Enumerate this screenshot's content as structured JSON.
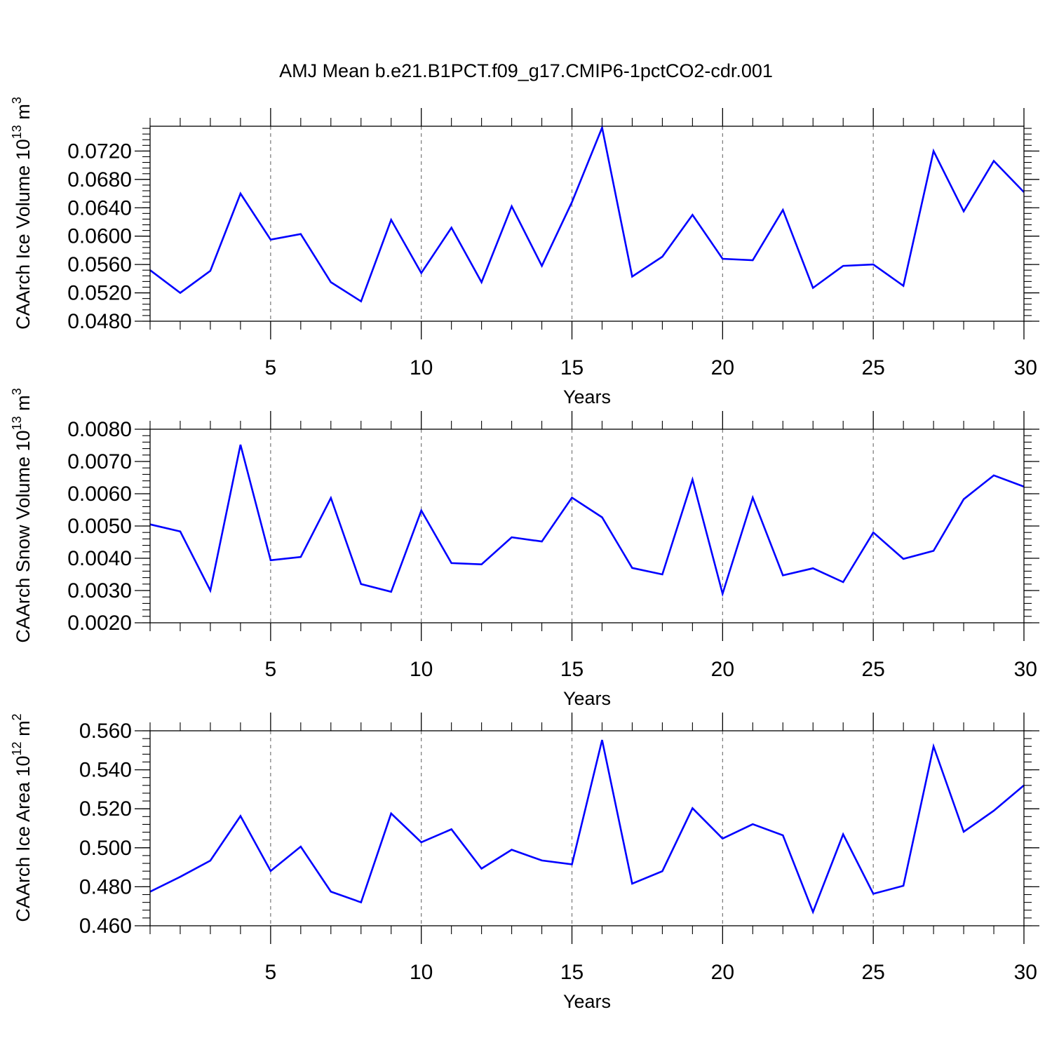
{
  "title": "AMJ Mean b.e21.B1PCT.f09_g17.CMIP6-1pctCO2-cdr.001",
  "line_color": "#0000ff",
  "chart_data": [
    {
      "type": "line",
      "xlabel": "Years",
      "ylabel": "CAArch Ice Volume 10",
      "ylabel_exp": "13",
      "ylabel_unit": " m",
      "ylabel_unit_exp": "3",
      "xlim": [
        1,
        30
      ],
      "ylim": [
        0.048,
        0.0755
      ],
      "x_ticks": [
        5,
        10,
        15,
        20,
        25,
        30
      ],
      "y_ticks": [
        0.048,
        0.052,
        0.056,
        0.06,
        0.064,
        0.068,
        0.072
      ],
      "y_tick_labels": [
        "0.0480",
        "0.0520",
        "0.0560",
        "0.0600",
        "0.0640",
        "0.0680",
        "0.0720"
      ],
      "x": [
        1,
        2,
        3,
        4,
        5,
        6,
        7,
        8,
        9,
        10,
        11,
        12,
        13,
        14,
        15,
        16,
        17,
        18,
        19,
        20,
        21,
        22,
        23,
        24,
        25,
        26,
        27,
        28,
        29,
        30
      ],
      "values": [
        0.0552,
        0.052,
        0.0551,
        0.066,
        0.0595,
        0.0603,
        0.0535,
        0.0508,
        0.0623,
        0.0548,
        0.0612,
        0.0535,
        0.0642,
        0.0558,
        0.0648,
        0.0753,
        0.0543,
        0.0571,
        0.063,
        0.0568,
        0.0566,
        0.0637,
        0.0527,
        0.0558,
        0.056,
        0.053,
        0.072,
        0.0635,
        0.0706,
        0.0662
      ]
    },
    {
      "type": "line",
      "xlabel": "Years",
      "ylabel": "CAArch Snow Volume 10",
      "ylabel_exp": "13",
      "ylabel_unit": " m",
      "ylabel_unit_exp": "3",
      "xlim": [
        1,
        30
      ],
      "ylim": [
        0.002,
        0.008
      ],
      "x_ticks": [
        5,
        10,
        15,
        20,
        25,
        30
      ],
      "y_ticks": [
        0.002,
        0.003,
        0.004,
        0.005,
        0.006,
        0.007,
        0.008
      ],
      "y_tick_labels": [
        "0.0020",
        "0.0030",
        "0.0040",
        "0.0050",
        "0.0060",
        "0.0070",
        "0.0080"
      ],
      "x": [
        1,
        2,
        3,
        4,
        5,
        6,
        7,
        8,
        9,
        10,
        11,
        12,
        13,
        14,
        15,
        16,
        17,
        18,
        19,
        20,
        21,
        22,
        23,
        24,
        25,
        26,
        27,
        28,
        29,
        30
      ],
      "values": [
        0.00505,
        0.00483,
        0.003,
        0.00752,
        0.00394,
        0.00404,
        0.00587,
        0.0032,
        0.00296,
        0.00548,
        0.00385,
        0.00381,
        0.00465,
        0.00452,
        0.00588,
        0.00527,
        0.0037,
        0.0035,
        0.00644,
        0.0029,
        0.00588,
        0.00347,
        0.00369,
        0.00326,
        0.0048,
        0.00398,
        0.00423,
        0.00583,
        0.00657,
        0.00622
      ]
    },
    {
      "type": "line",
      "xlabel": "Years",
      "ylabel": "CAArch Ice Area 10",
      "ylabel_exp": "12",
      "ylabel_unit": " m",
      "ylabel_unit_exp": "2",
      "xlim": [
        1,
        30
      ],
      "ylim": [
        0.46,
        0.56
      ],
      "x_ticks": [
        5,
        10,
        15,
        20,
        25,
        30
      ],
      "y_ticks": [
        0.46,
        0.48,
        0.5,
        0.52,
        0.54,
        0.56
      ],
      "y_tick_labels": [
        "0.460",
        "0.480",
        "0.500",
        "0.520",
        "0.540",
        "0.560"
      ],
      "x": [
        1,
        2,
        3,
        4,
        5,
        6,
        7,
        8,
        9,
        10,
        11,
        12,
        13,
        14,
        15,
        16,
        17,
        18,
        19,
        20,
        21,
        22,
        23,
        24,
        25,
        26,
        27,
        28,
        29,
        30
      ],
      "values": [
        0.4775,
        0.4851,
        0.4934,
        0.5163,
        0.4881,
        0.5006,
        0.4775,
        0.472,
        0.5176,
        0.5028,
        0.5095,
        0.4893,
        0.499,
        0.4935,
        0.4915,
        0.5553,
        0.4816,
        0.488,
        0.5203,
        0.5047,
        0.5121,
        0.5064,
        0.4671,
        0.5069,
        0.4764,
        0.4805,
        0.552,
        0.5082,
        0.519,
        0.532
      ]
    }
  ]
}
